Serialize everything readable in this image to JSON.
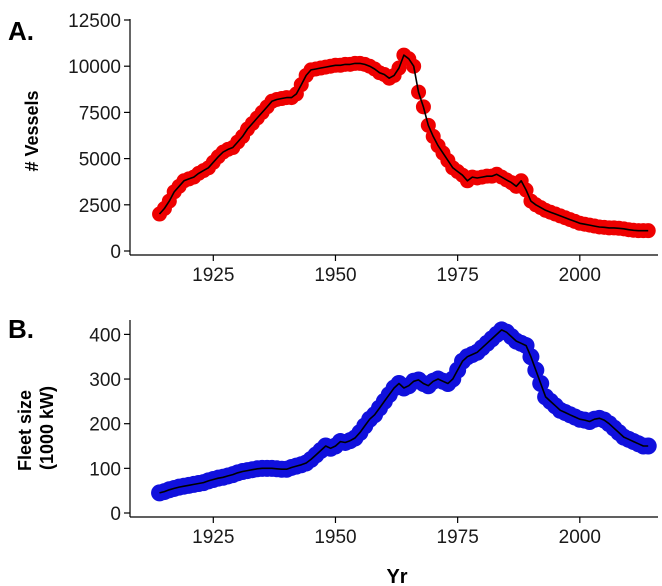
{
  "chart_data": [
    {
      "type": "line",
      "panel_label": "A.",
      "ylabel": "# Vessels",
      "xlabel": "",
      "xlim": [
        1910,
        2016
      ],
      "ylim": [
        0,
        12500
      ],
      "xticks": [
        1925,
        1950,
        1975,
        2000
      ],
      "yticks": [
        0,
        2500,
        5000,
        7500,
        10000,
        12500
      ],
      "grid": false,
      "legend": "none",
      "point_color": "#ee0000",
      "line_color": "#000000",
      "x": [
        1914,
        1915,
        1916,
        1917,
        1918,
        1919,
        1920,
        1921,
        1922,
        1923,
        1924,
        1925,
        1926,
        1927,
        1928,
        1929,
        1930,
        1931,
        1932,
        1933,
        1934,
        1935,
        1936,
        1937,
        1938,
        1939,
        1940,
        1941,
        1942,
        1943,
        1944,
        1945,
        1946,
        1947,
        1948,
        1949,
        1950,
        1951,
        1952,
        1953,
        1954,
        1955,
        1956,
        1957,
        1958,
        1959,
        1960,
        1961,
        1962,
        1963,
        1964,
        1965,
        1966,
        1967,
        1968,
        1969,
        1970,
        1971,
        1972,
        1973,
        1974,
        1975,
        1976,
        1977,
        1978,
        1979,
        1980,
        1981,
        1982,
        1983,
        1984,
        1985,
        1986,
        1987,
        1988,
        1989,
        1990,
        1991,
        1992,
        1993,
        1994,
        1995,
        1996,
        1997,
        1998,
        1999,
        2000,
        2001,
        2002,
        2003,
        2004,
        2005,
        2006,
        2007,
        2008,
        2009,
        2010,
        2011,
        2012,
        2013,
        2014
      ],
      "y": [
        2000,
        2300,
        2700,
        3200,
        3500,
        3800,
        3900,
        4000,
        4200,
        4350,
        4500,
        4800,
        5100,
        5350,
        5500,
        5600,
        5900,
        6200,
        6600,
        6900,
        7200,
        7500,
        7800,
        8100,
        8200,
        8250,
        8300,
        8300,
        8500,
        9000,
        9500,
        9800,
        9850,
        9900,
        9950,
        10000,
        10050,
        10050,
        10100,
        10100,
        10150,
        10150,
        10100,
        10000,
        9850,
        9650,
        9550,
        9350,
        9500,
        9900,
        10600,
        10400,
        10000,
        8600,
        7800,
        6800,
        6200,
        5700,
        5300,
        4900,
        4500,
        4300,
        4100,
        3800,
        4000,
        3950,
        4000,
        4050,
        4050,
        4150,
        4000,
        3850,
        3700,
        3500,
        3800,
        3300,
        2700,
        2500,
        2350,
        2200,
        2100,
        2000,
        1900,
        1800,
        1700,
        1600,
        1500,
        1450,
        1400,
        1350,
        1300,
        1280,
        1250,
        1250,
        1230,
        1200,
        1150,
        1120,
        1100,
        1100,
        1100
      ]
    },
    {
      "type": "line",
      "panel_label": "B.",
      "ylabel": "Fleet size (1000 kW)",
      "ylabel_lines": [
        "Fleet size",
        "(1000 kW)"
      ],
      "xlabel": "Yr",
      "xlim": [
        1910,
        2016
      ],
      "ylim": [
        0,
        430
      ],
      "xticks": [
        1925,
        1950,
        1975,
        2000
      ],
      "yticks": [
        0,
        100,
        200,
        300,
        400
      ],
      "grid": false,
      "legend": "none",
      "point_color": "#1010dd",
      "line_color": "#000000",
      "x": [
        1914,
        1915,
        1916,
        1917,
        1918,
        1919,
        1920,
        1921,
        1922,
        1923,
        1924,
        1925,
        1926,
        1927,
        1928,
        1929,
        1930,
        1931,
        1932,
        1933,
        1934,
        1935,
        1936,
        1937,
        1938,
        1939,
        1940,
        1941,
        1942,
        1943,
        1944,
        1945,
        1946,
        1947,
        1948,
        1949,
        1950,
        1951,
        1952,
        1953,
        1954,
        1955,
        1956,
        1957,
        1958,
        1959,
        1960,
        1961,
        1962,
        1963,
        1964,
        1965,
        1966,
        1967,
        1968,
        1969,
        1970,
        1971,
        1972,
        1973,
        1974,
        1975,
        1976,
        1977,
        1978,
        1979,
        1980,
        1981,
        1982,
        1983,
        1984,
        1985,
        1986,
        1987,
        1988,
        1989,
        1990,
        1991,
        1992,
        1993,
        1994,
        1995,
        1996,
        1997,
        1998,
        1999,
        2000,
        2001,
        2002,
        2003,
        2004,
        2005,
        2006,
        2007,
        2008,
        2009,
        2010,
        2011,
        2012,
        2013,
        2014
      ],
      "y": [
        45,
        48,
        52,
        55,
        58,
        60,
        62,
        64,
        66,
        68,
        72,
        75,
        78,
        80,
        83,
        86,
        90,
        93,
        95,
        97,
        99,
        100,
        100,
        100,
        99,
        98,
        98,
        102,
        105,
        108,
        112,
        120,
        130,
        140,
        150,
        145,
        150,
        160,
        158,
        162,
        168,
        180,
        195,
        210,
        220,
        235,
        250,
        265,
        280,
        290,
        280,
        285,
        295,
        298,
        290,
        285,
        295,
        300,
        295,
        290,
        300,
        320,
        340,
        350,
        355,
        360,
        370,
        380,
        390,
        400,
        410,
        405,
        395,
        385,
        380,
        375,
        350,
        320,
        290,
        260,
        250,
        240,
        230,
        225,
        220,
        215,
        210,
        208,
        205,
        210,
        212,
        208,
        200,
        190,
        180,
        170,
        165,
        160,
        155,
        150,
        150
      ]
    }
  ]
}
